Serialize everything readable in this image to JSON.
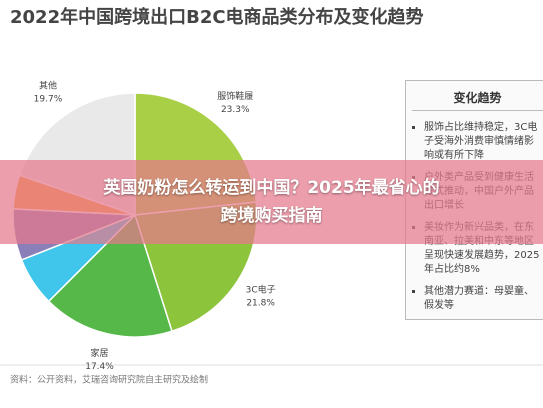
{
  "chart_data": {
    "type": "pie",
    "title": "2022年中国跨境出口B2C电商品类分布及变化趋势",
    "categories": [
      "服饰鞋履",
      "3C电子",
      "家居",
      null,
      null,
      null,
      "其他"
    ],
    "values": [
      23.3,
      21.8,
      17.4,
      6.5,
      6.8,
      4.5,
      19.7
    ],
    "value_labels": [
      "23.3%",
      "21.8%",
      "17.4%",
      null,
      null,
      null,
      "19.7%"
    ],
    "colors": [
      "#a9cf46",
      "#8cc43c",
      "#55b848",
      "#3fc6ea",
      "#8a7fb8",
      "#f3a33b",
      "#e9e9e9"
    ],
    "source": "资料：公开资料，艾瑞咨询研究院自主研究及绘制"
  },
  "side_panel": {
    "title": "变化趋势",
    "items": [
      "服饰占比维持稳定，3C电子受海外消费审慎情绪影响或有所下降",
      "户外类产品受到健康生活方式推动，中国户外产品出口增长",
      "美妆作为新兴品类，在东南亚、拉美和中东等地区呈现快速发展趋势，2025年占比约8%",
      "其他潜力赛道：母婴童、假发等"
    ]
  },
  "banner": {
    "lines": [
      "英国奶粉怎么转运到中国？2025年最省心的",
      "跨境购买指南"
    ]
  }
}
